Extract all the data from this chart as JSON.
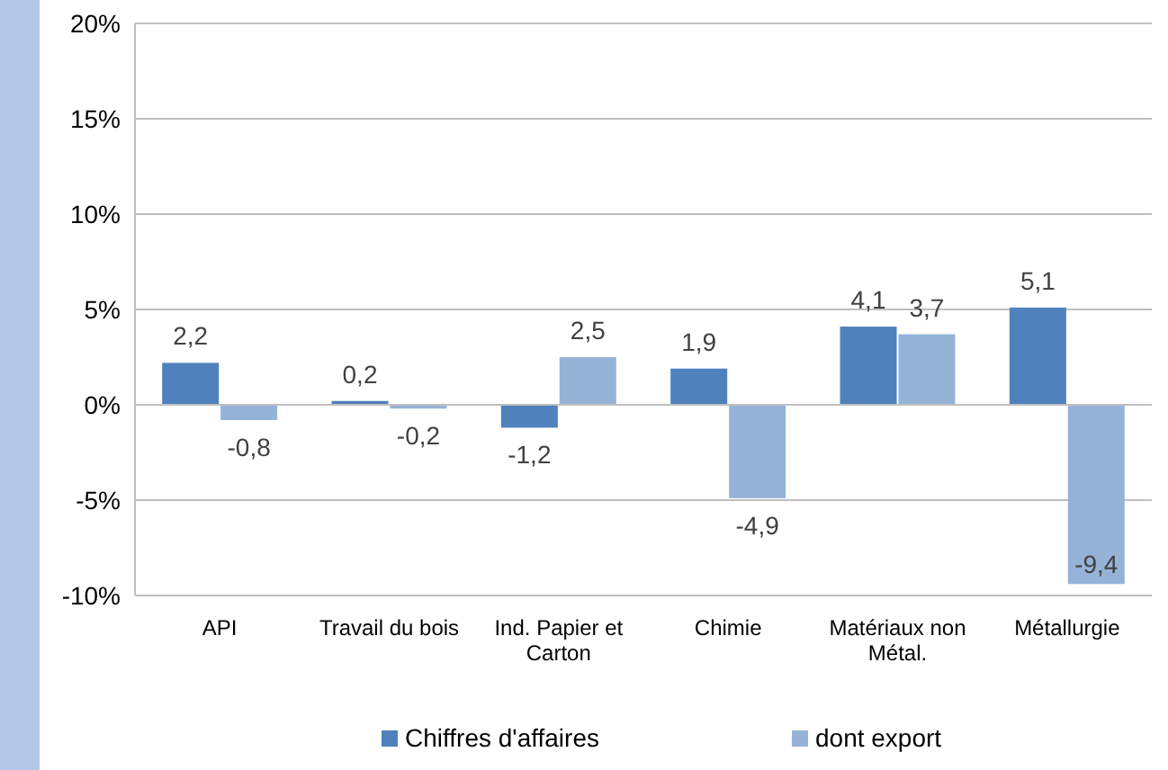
{
  "chart_data": {
    "type": "bar",
    "categories": [
      "API",
      "Travail du bois",
      "Ind. Papier et Carton",
      "Chimie",
      "Matériaux non Métal.",
      "Métallurgie"
    ],
    "series": [
      {
        "name": "Chiffres d'affaires",
        "color": "#4f81bd",
        "values": [
          2.2,
          0.2,
          -1.2,
          1.9,
          4.1,
          5.1
        ],
        "value_labels": [
          "2,2",
          "0,2",
          "-1,2",
          "1,9",
          "4,1",
          "5,1"
        ]
      },
      {
        "name": "dont export",
        "color": "#95b3d7",
        "values": [
          -0.8,
          -0.2,
          2.5,
          -4.9,
          3.7,
          -9.4
        ],
        "value_labels": [
          "-0,8",
          "-0,2",
          "2,5",
          "-4,9",
          "3,7",
          "-9,4"
        ]
      }
    ],
    "ylim": [
      -10,
      20
    ],
    "yticks": [
      {
        "value": -10,
        "label": "-10%"
      },
      {
        "value": -5,
        "label": "-5%"
      },
      {
        "value": 0,
        "label": "0%"
      },
      {
        "value": 5,
        "label": "5%"
      },
      {
        "value": 10,
        "label": "10%"
      },
      {
        "value": 15,
        "label": "15%"
      },
      {
        "value": 20,
        "label": "20%"
      }
    ],
    "grid": "y",
    "legend": "bottom"
  }
}
